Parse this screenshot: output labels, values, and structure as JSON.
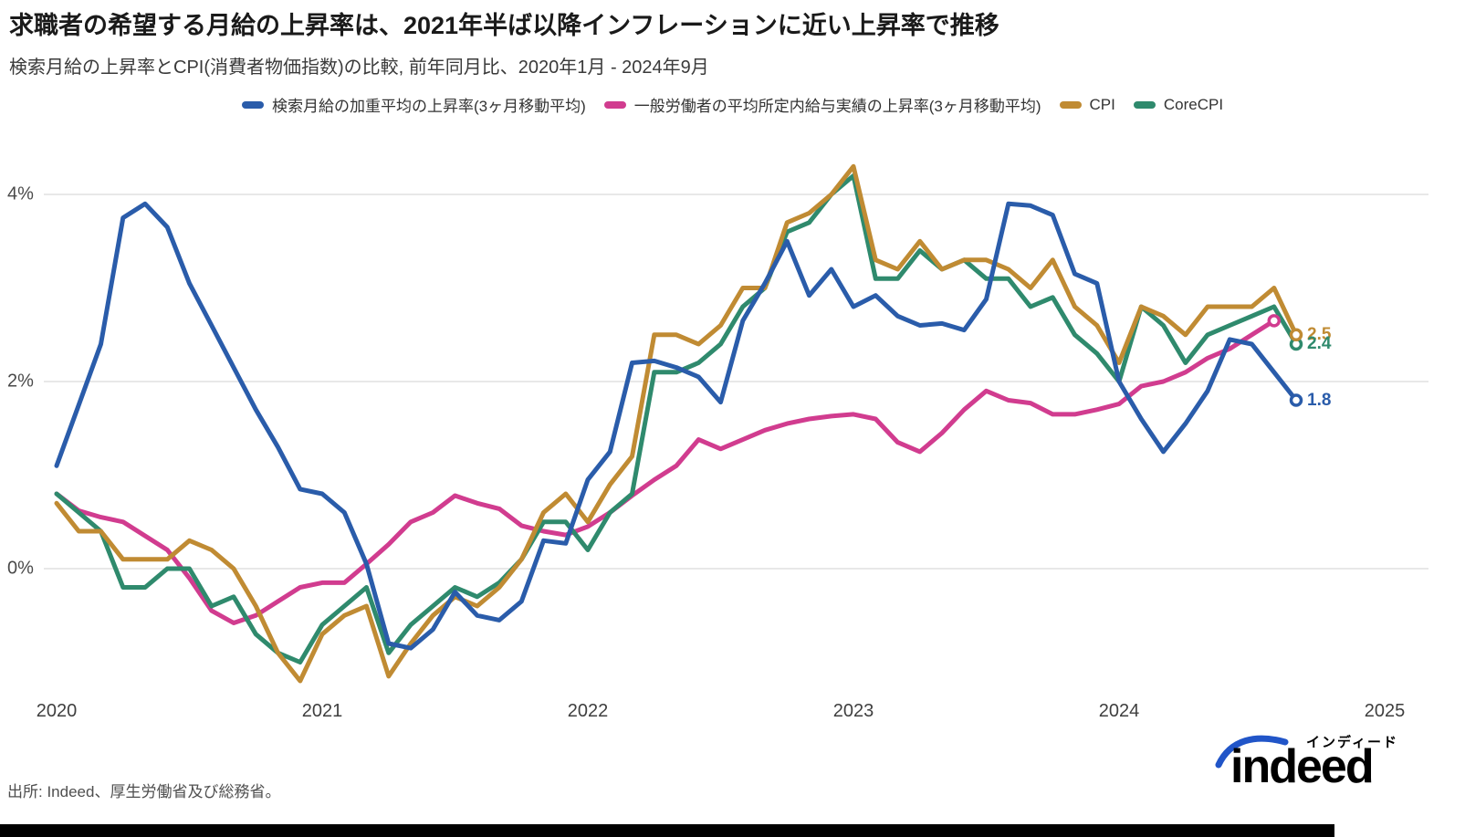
{
  "header": {
    "title": "求職者の希望する月給の上昇率は、2021年半ば以降インフレーションに近い上昇率で推移",
    "subtitle": "検索月給の上昇率とCPI(消費者物価指数)の比較, 前年同月比、2020年1月 - 2024年9月"
  },
  "colors": {
    "search_salary": "#2a5caa",
    "scheduled_earnings": "#d13c8f",
    "cpi": "#c08b33",
    "core_cpi": "#2f8a6d",
    "logo_blue": "#2155c8",
    "gridline": "#e0e0e0"
  },
  "legend": {
    "items": [
      {
        "label": "検索月給の加重平均の上昇率(3ヶ月移動平均)",
        "color": "#2a5caa"
      },
      {
        "label": "一般労働者の平均所定内給与実績の上昇率(3ヶ月移動平均)",
        "color": "#d13c8f"
      },
      {
        "label": "CPI",
        "color": "#c08b33"
      },
      {
        "label": "CoreCPI",
        "color": "#2f8a6d"
      }
    ]
  },
  "y_axis": {
    "ticks": [
      {
        "label": "4%",
        "value": 4
      },
      {
        "label": "2%",
        "value": 2
      },
      {
        "label": "0%",
        "value": 0
      }
    ]
  },
  "x_axis": {
    "ticks": [
      "2020",
      "2021",
      "2022",
      "2023",
      "2024",
      "2025"
    ]
  },
  "end_labels": [
    {
      "text": "2.5",
      "value": 2.5,
      "color": "#c08b33"
    },
    {
      "text": "2.4",
      "value": 2.4,
      "color": "#2f8a6d"
    },
    {
      "text": "1.8",
      "value": 1.8,
      "color": "#2a5caa"
    }
  ],
  "source": "出所: Indeed、厚生労働省及び総務省。",
  "logo": {
    "katakana": "インディード",
    "wordmark": "indeed"
  },
  "chart_data": {
    "type": "line",
    "title": "検索月給の上昇率とCPI(消費者物価指数)の比較, 前年同月比",
    "x_start": "2020-01",
    "x_end": "2024-09",
    "frequency": "monthly",
    "unit": "% (前年同月比)",
    "ylim": [
      -1.5,
      4.5
    ],
    "grid_values": [
      0,
      2,
      4
    ],
    "legend_position": "top",
    "series": [
      {
        "name": "一般労働者の平均所定内給与実績の上昇率(3ヶ月移動平均)",
        "color": "#d13c8f",
        "end_dot": true,
        "end_label": null,
        "values": [
          0.8,
          0.62,
          0.55,
          0.5,
          0.35,
          0.2,
          -0.1,
          -0.45,
          -0.58,
          -0.5,
          -0.35,
          -0.2,
          -0.15,
          -0.15,
          0.05,
          0.26,
          0.5,
          0.6,
          0.78,
          0.7,
          0.64,
          0.46,
          0.4,
          0.36,
          0.45,
          0.6,
          0.78,
          0.95,
          1.1,
          1.38,
          1.28,
          1.38,
          1.48,
          1.55,
          1.6,
          1.63,
          1.65,
          1.6,
          1.35,
          1.25,
          1.45,
          1.7,
          1.9,
          1.8,
          1.77,
          1.65,
          1.65,
          1.7,
          1.76,
          1.95,
          2.0,
          2.1,
          2.25,
          2.35,
          2.5,
          2.65
        ]
      },
      {
        "name": "CoreCPI",
        "color": "#2f8a6d",
        "end_dot": true,
        "end_label": "2.4",
        "values": [
          0.8,
          0.6,
          0.4,
          -0.2,
          -0.2,
          0.0,
          0.0,
          -0.4,
          -0.3,
          -0.7,
          -0.9,
          -1.0,
          -0.6,
          -0.4,
          -0.2,
          -0.9,
          -0.6,
          -0.4,
          -0.2,
          -0.3,
          -0.15,
          0.1,
          0.5,
          0.5,
          0.2,
          0.6,
          0.8,
          2.1,
          2.1,
          2.2,
          2.4,
          2.8,
          3.0,
          3.6,
          3.7,
          4.0,
          4.2,
          3.1,
          3.1,
          3.4,
          3.2,
          3.3,
          3.1,
          3.1,
          2.8,
          2.9,
          2.5,
          2.3,
          2.0,
          2.8,
          2.6,
          2.2,
          2.5,
          2.6,
          2.7,
          2.8,
          2.4
        ]
      },
      {
        "name": "CPI",
        "color": "#c08b33",
        "end_dot": true,
        "end_label": "2.5",
        "values": [
          0.7,
          0.4,
          0.4,
          0.1,
          0.1,
          0.1,
          0.3,
          0.2,
          0.0,
          -0.4,
          -0.9,
          -1.2,
          -0.7,
          -0.5,
          -0.4,
          -1.15,
          -0.8,
          -0.5,
          -0.3,
          -0.4,
          -0.2,
          0.1,
          0.6,
          0.8,
          0.5,
          0.9,
          1.2,
          2.5,
          2.5,
          2.4,
          2.6,
          3.0,
          3.0,
          3.7,
          3.8,
          4.0,
          4.3,
          3.3,
          3.2,
          3.5,
          3.2,
          3.3,
          3.3,
          3.2,
          3.0,
          3.3,
          2.8,
          2.6,
          2.2,
          2.8,
          2.7,
          2.5,
          2.8,
          2.8,
          2.8,
          3.0,
          2.5
        ]
      },
      {
        "name": "検索月給の加重平均の上昇率(3ヶ月移動平均)",
        "color": "#2a5caa",
        "end_dot": true,
        "end_label": "1.8",
        "values": [
          1.1,
          1.75,
          2.4,
          3.75,
          3.9,
          3.65,
          3.05,
          2.6,
          2.15,
          1.7,
          1.3,
          0.85,
          0.8,
          0.6,
          0.05,
          -0.8,
          -0.85,
          -0.65,
          -0.25,
          -0.5,
          -0.55,
          -0.35,
          0.3,
          0.27,
          0.95,
          1.25,
          2.2,
          2.22,
          2.15,
          2.05,
          1.78,
          2.65,
          3.05,
          3.5,
          2.92,
          3.2,
          2.8,
          2.92,
          2.7,
          2.6,
          2.62,
          2.55,
          2.88,
          3.9,
          3.88,
          3.78,
          3.15,
          3.05,
          2.0,
          1.6,
          1.25,
          1.55,
          1.9,
          2.45,
          2.4,
          2.1,
          1.8
        ]
      }
    ]
  }
}
